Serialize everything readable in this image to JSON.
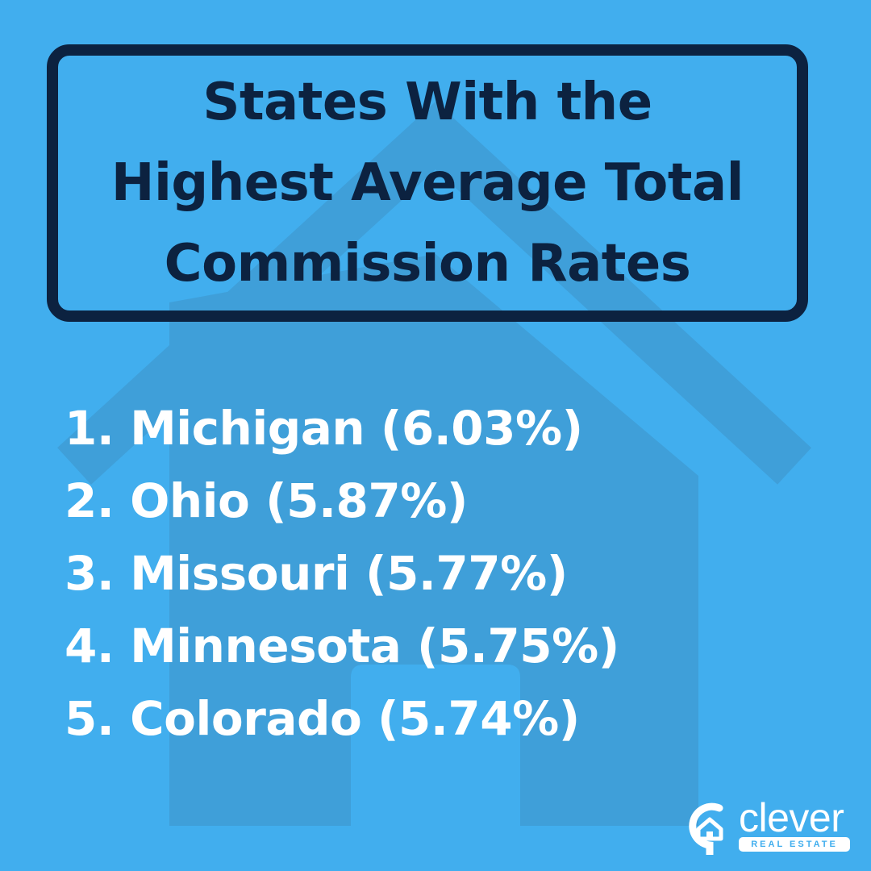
{
  "title": {
    "lines": [
      "States With the",
      "Highest Average Total",
      "Commission Rates"
    ]
  },
  "rankings": [
    {
      "rank": 1,
      "text": "1. Michigan (6.03%)",
      "state": "Michigan",
      "rate": 6.03
    },
    {
      "rank": 2,
      "text": "2. Ohio (5.87%)",
      "state": "Ohio",
      "rate": 5.87
    },
    {
      "rank": 3,
      "text": "3. Missouri (5.77%)",
      "state": "Missouri",
      "rate": 5.77
    },
    {
      "rank": 4,
      "text": "4. Minnesota (5.75%)",
      "state": "Minnesota",
      "rate": 5.75
    },
    {
      "rank": 5,
      "text": "5. Colorado (5.74%)",
      "state": "Colorado",
      "rate": 5.74
    }
  ],
  "brand": {
    "name": "clever",
    "tagline": "REAL ESTATE",
    "icon": "location-pin-house-icon"
  },
  "colors": {
    "background": "#41aeee",
    "house_watermark": "#3f9fd9",
    "title_border": "#0c2240",
    "title_text": "#0c2240",
    "list_text": "#ffffff",
    "logo": "#ffffff"
  }
}
